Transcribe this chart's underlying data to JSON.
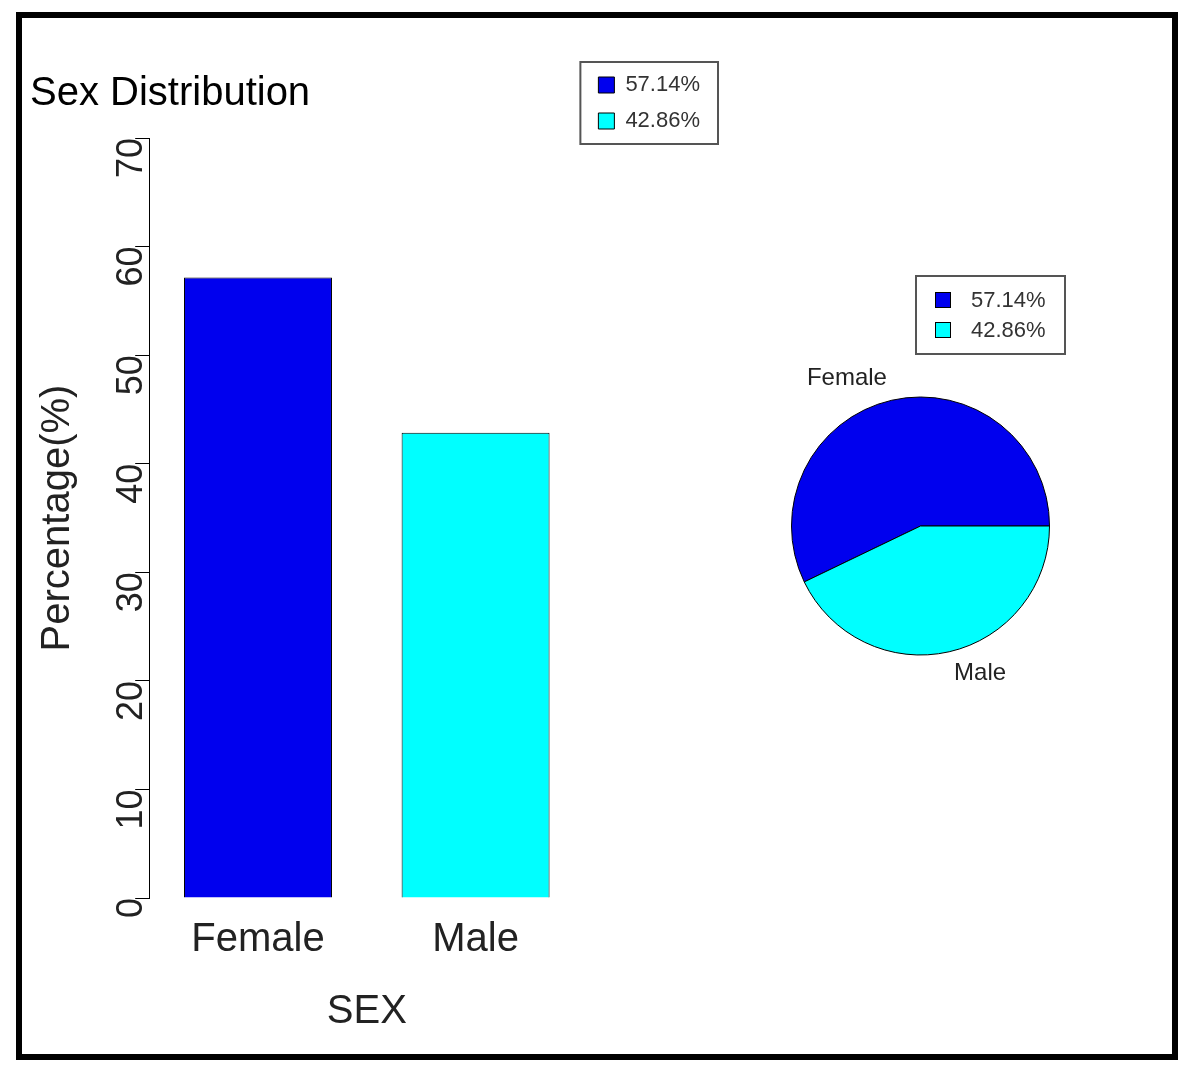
{
  "chart_data": [
    {
      "type": "bar",
      "title": "Sex Distribution",
      "xlabel": "SEX",
      "ylabel": "Percentage(%)",
      "categories": [
        "Female",
        "Male"
      ],
      "series": [
        {
          "name": "57.14%",
          "color": "#0000ee",
          "values": [
            57.14,
            null
          ]
        },
        {
          "name": "42.86%",
          "color": "#00ffff",
          "values": [
            null,
            42.86
          ]
        }
      ],
      "ylim": [
        0,
        70
      ],
      "yticks": [
        0,
        10,
        20,
        30,
        40,
        50,
        60,
        70
      ],
      "legend": "top right",
      "grid": false
    },
    {
      "type": "pie",
      "categories": [
        "Female",
        "Male"
      ],
      "values": [
        57.14,
        42.86
      ],
      "colors": [
        "#0000ee",
        "#00ffff"
      ],
      "annotations": [
        "57.14%",
        "42.86%"
      ]
    }
  ]
}
